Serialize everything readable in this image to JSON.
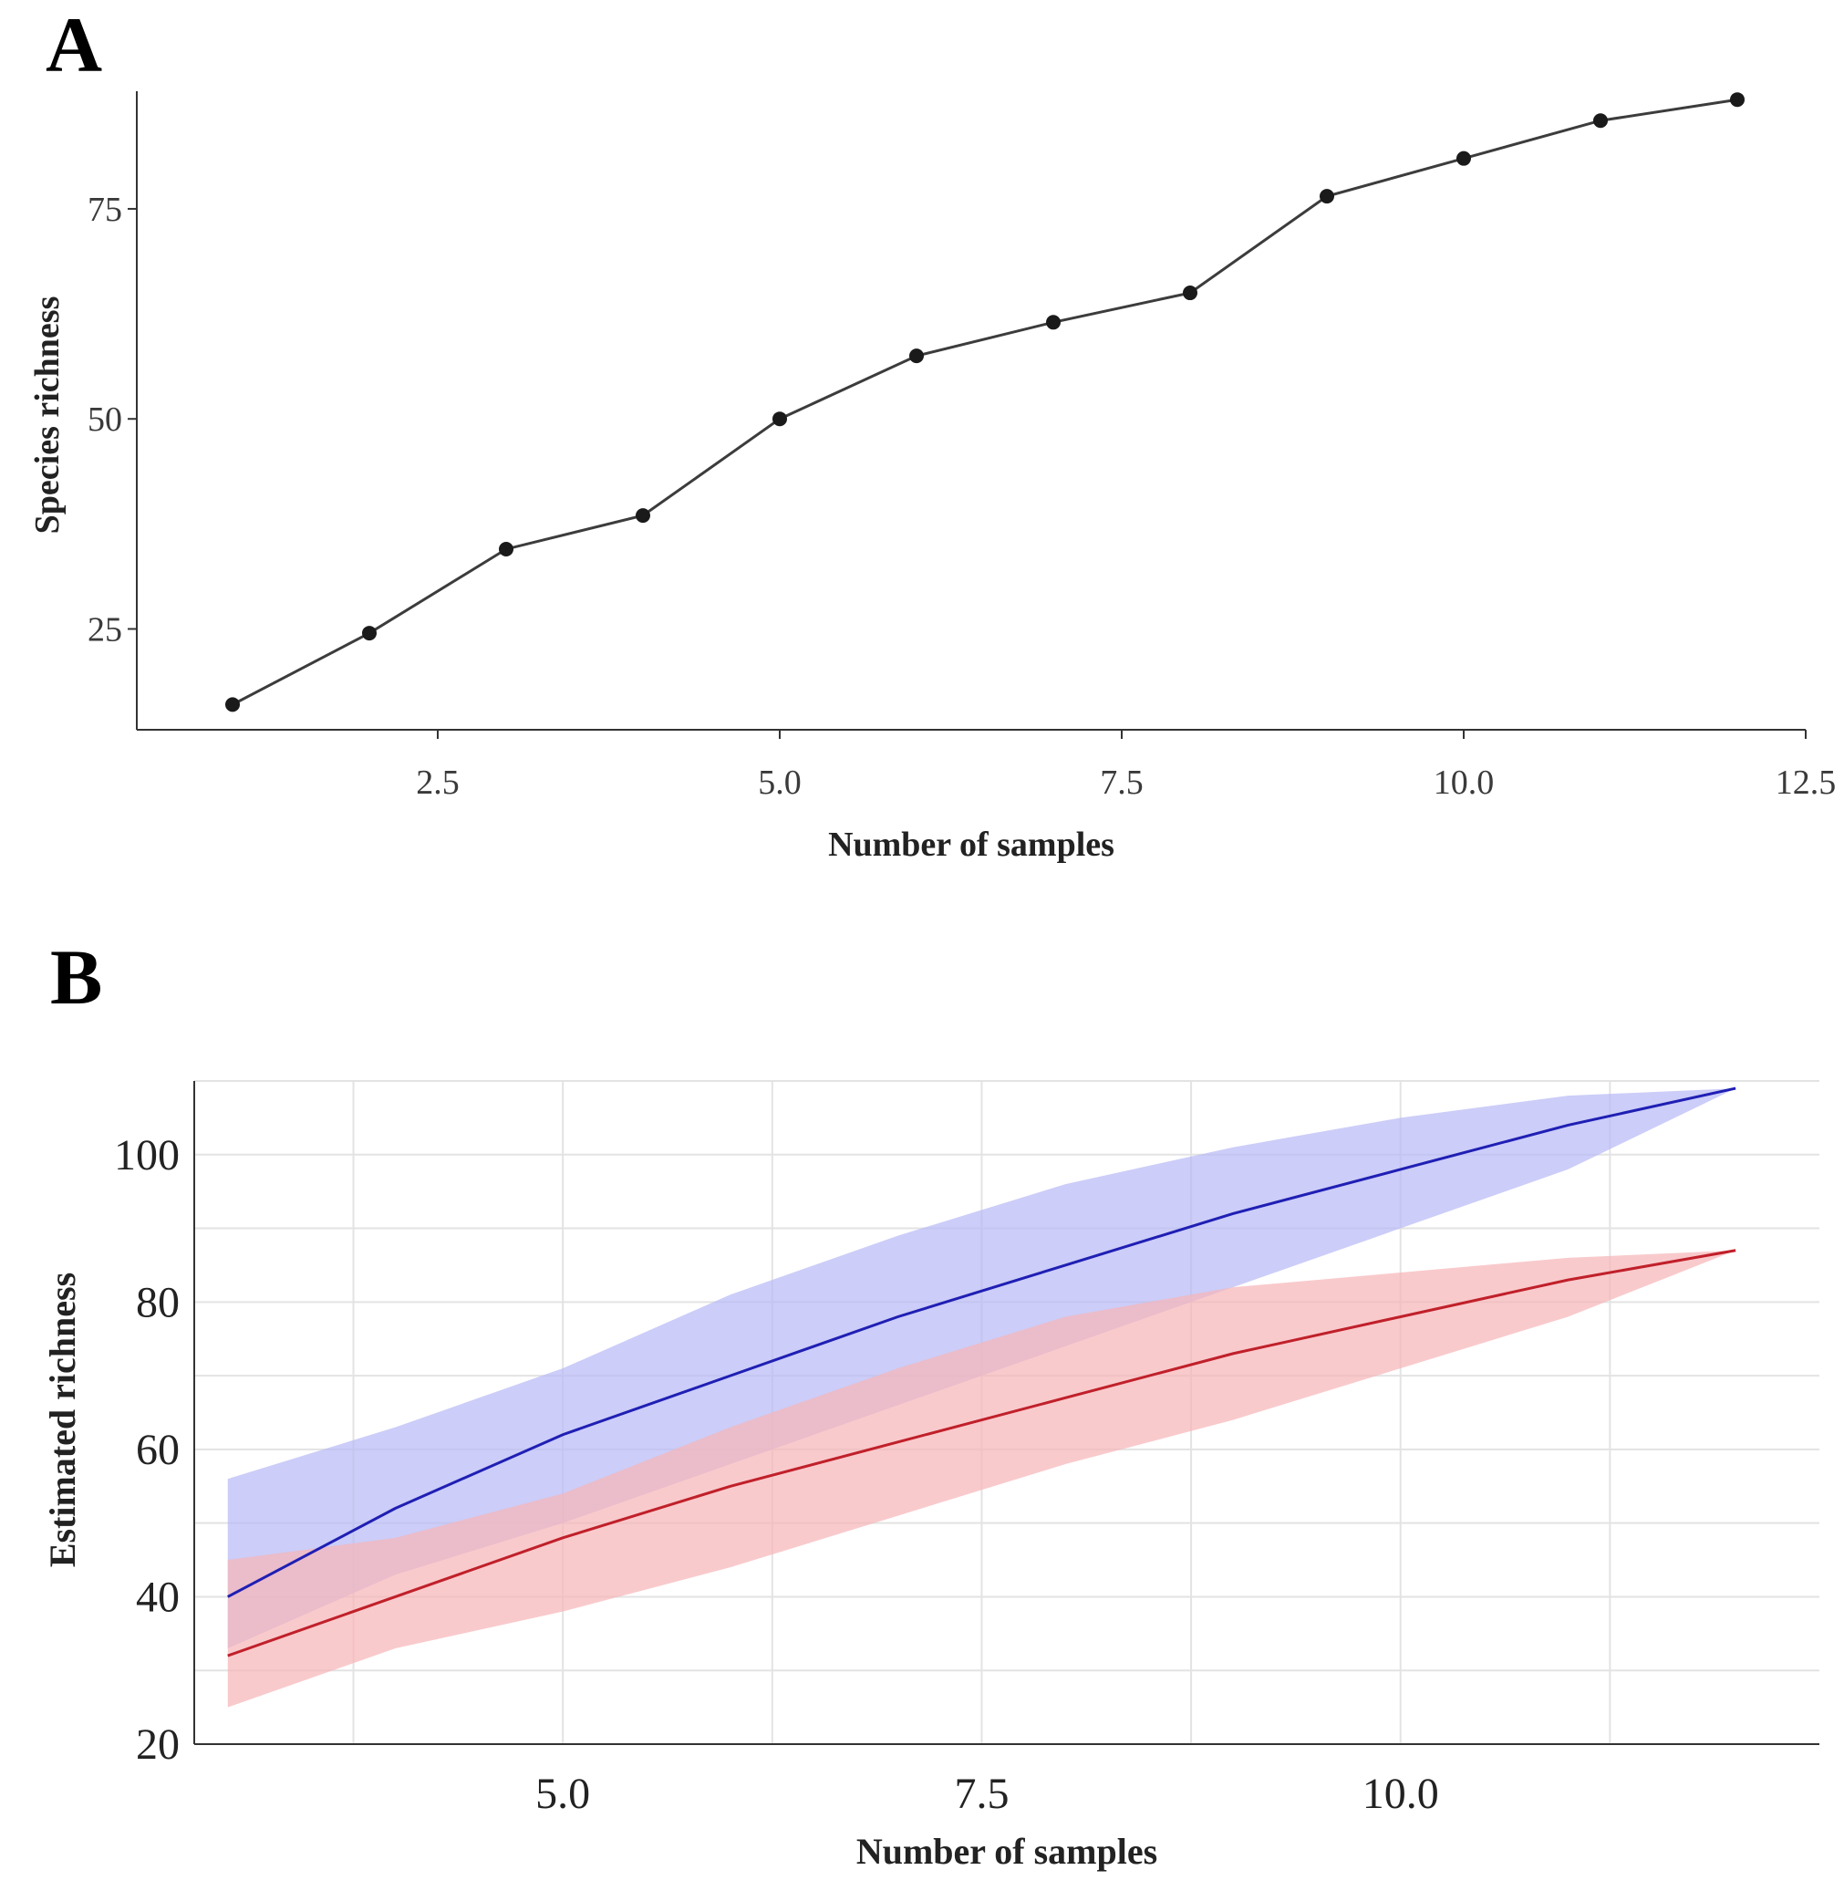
{
  "chart_data": [
    {
      "panel": "A",
      "type": "line",
      "xlabel": "Number of samples",
      "ylabel": "Species richness",
      "xlim": [
        0.3,
        12.5
      ],
      "ylim": [
        13,
        89
      ],
      "xticks": [
        2.5,
        5.0,
        7.5,
        10.0,
        12.5
      ],
      "xtick_labels": [
        "2.5",
        "5.0",
        "7.5",
        "10.0",
        "12.5"
      ],
      "yticks": [
        25,
        50,
        75
      ],
      "ytick_labels": [
        "25",
        "50",
        "75"
      ],
      "grid": false,
      "x": [
        1,
        2,
        3,
        4,
        5,
        6,
        7,
        8,
        9,
        10,
        11,
        12
      ],
      "y": [
        16,
        24.5,
        34.5,
        38.5,
        50,
        57.5,
        61.5,
        65,
        76.5,
        81,
        85.5,
        88
      ]
    },
    {
      "panel": "B",
      "type": "line",
      "xlabel": "Number of samples",
      "ylabel": "Estimated richness",
      "xlim": [
        2.8,
        12.5
      ],
      "ylim": [
        20,
        110
      ],
      "xticks": [
        5.0,
        7.5,
        10.0
      ],
      "xtick_labels": [
        "5.0",
        "7.5",
        "10.0"
      ],
      "yticks": [
        20,
        40,
        60,
        80,
        100
      ],
      "ytick_labels": [
        "20",
        "40",
        "60",
        "80",
        "100"
      ],
      "grid": true,
      "series": [
        {
          "name": "blue",
          "color": "#1f1fb4",
          "band_color": "#b9baf5",
          "x": [
            3,
            4,
            5,
            6,
            7,
            8,
            9,
            10,
            11,
            12
          ],
          "y": [
            40,
            52,
            62,
            70,
            78,
            85,
            92,
            98,
            104,
            109
          ],
          "lower": [
            33,
            43,
            50,
            58,
            66,
            74,
            82,
            90,
            98,
            109
          ],
          "upper": [
            56,
            63,
            71,
            81,
            89,
            96,
            101,
            105,
            108,
            109
          ]
        },
        {
          "name": "red",
          "color": "#c0202a",
          "band_color": "#f7b6b8",
          "x": [
            3,
            4,
            5,
            6,
            7,
            8,
            9,
            10,
            11,
            12
          ],
          "y": [
            32,
            40,
            48,
            55,
            61,
            67,
            73,
            78,
            83,
            87
          ],
          "lower": [
            25,
            33,
            38,
            44,
            51,
            58,
            64,
            71,
            78,
            87
          ],
          "upper": [
            45,
            48,
            54,
            63,
            71,
            78,
            82,
            84,
            86,
            87
          ]
        }
      ]
    }
  ],
  "labels": {
    "panel_a": "A",
    "panel_b": "B"
  }
}
